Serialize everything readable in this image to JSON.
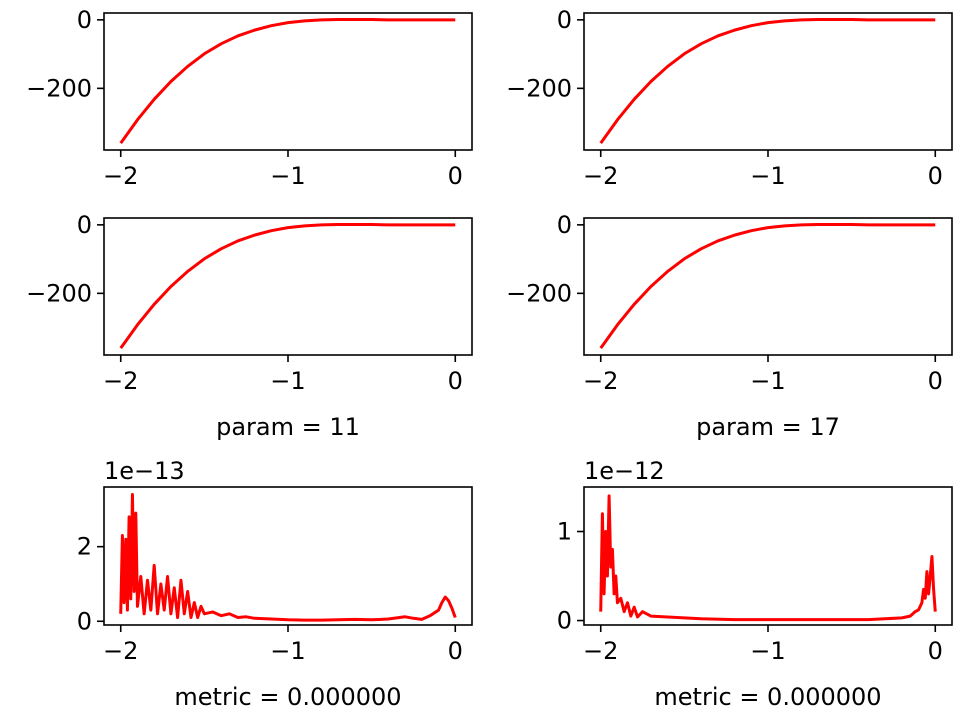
{
  "chart_data": [
    {
      "type": "line",
      "title": "",
      "xlabel": "",
      "ylabel": "",
      "xlim": [
        -2.1,
        0.1
      ],
      "ylim": [
        -380,
        20
      ],
      "x_ticks": [
        -2,
        -1,
        0
      ],
      "x_tick_labels": [
        "−2",
        "−1",
        "0"
      ],
      "y_ticks": [
        -200,
        0
      ],
      "y_tick_labels": [
        "−200",
        "0"
      ],
      "offset_text": "",
      "grid": false,
      "series": [
        {
          "color": "#ff0000",
          "x": [
            -2.0,
            -1.9,
            -1.8,
            -1.7,
            -1.6,
            -1.5,
            -1.4,
            -1.3,
            -1.2,
            -1.1,
            -1.0,
            -0.9,
            -0.8,
            -0.7,
            -0.6,
            -0.5,
            -0.4,
            -0.3,
            -0.2,
            -0.1,
            0.0
          ],
          "y": [
            -360,
            -292,
            -232,
            -180,
            -136,
            -99,
            -70,
            -47,
            -30,
            -17,
            -8,
            -3,
            0,
            1,
            1,
            1,
            0,
            0,
            0,
            0,
            0
          ]
        }
      ]
    },
    {
      "type": "line",
      "title": "",
      "xlabel": "",
      "ylabel": "",
      "xlim": [
        -2.1,
        0.1
      ],
      "ylim": [
        -380,
        20
      ],
      "x_ticks": [
        -2,
        -1,
        0
      ],
      "x_tick_labels": [
        "−2",
        "−1",
        "0"
      ],
      "y_ticks": [
        -200,
        0
      ],
      "y_tick_labels": [
        "−200",
        "0"
      ],
      "offset_text": "",
      "grid": false,
      "series": [
        {
          "color": "#ff0000",
          "x": [
            -2.0,
            -1.9,
            -1.8,
            -1.7,
            -1.6,
            -1.5,
            -1.4,
            -1.3,
            -1.2,
            -1.1,
            -1.0,
            -0.9,
            -0.8,
            -0.7,
            -0.6,
            -0.5,
            -0.4,
            -0.3,
            -0.2,
            -0.1,
            0.0
          ],
          "y": [
            -360,
            -292,
            -232,
            -180,
            -136,
            -99,
            -70,
            -47,
            -30,
            -17,
            -8,
            -3,
            0,
            1,
            1,
            1,
            0,
            0,
            0,
            0,
            0
          ]
        }
      ]
    },
    {
      "type": "line",
      "title": "",
      "xlabel": "param = 11",
      "ylabel": "",
      "xlim": [
        -2.1,
        0.1
      ],
      "ylim": [
        -380,
        20
      ],
      "x_ticks": [
        -2,
        -1,
        0
      ],
      "x_tick_labels": [
        "−2",
        "−1",
        "0"
      ],
      "y_ticks": [
        -200,
        0
      ],
      "y_tick_labels": [
        "−200",
        "0"
      ],
      "offset_text": "",
      "grid": false,
      "series": [
        {
          "color": "#ff0000",
          "x": [
            -2.0,
            -1.9,
            -1.8,
            -1.7,
            -1.6,
            -1.5,
            -1.4,
            -1.3,
            -1.2,
            -1.1,
            -1.0,
            -0.9,
            -0.8,
            -0.7,
            -0.6,
            -0.5,
            -0.4,
            -0.3,
            -0.2,
            -0.1,
            0.0
          ],
          "y": [
            -360,
            -292,
            -232,
            -180,
            -136,
            -99,
            -70,
            -47,
            -30,
            -17,
            -8,
            -3,
            0,
            1,
            1,
            1,
            0,
            0,
            0,
            0,
            0
          ]
        }
      ]
    },
    {
      "type": "line",
      "title": "",
      "xlabel": "param = 17",
      "ylabel": "",
      "xlim": [
        -2.1,
        0.1
      ],
      "ylim": [
        -380,
        20
      ],
      "x_ticks": [
        -2,
        -1,
        0
      ],
      "x_tick_labels": [
        "−2",
        "−1",
        "0"
      ],
      "y_ticks": [
        -200,
        0
      ],
      "y_tick_labels": [
        "−200",
        "0"
      ],
      "offset_text": "",
      "grid": false,
      "series": [
        {
          "color": "#ff0000",
          "x": [
            -2.0,
            -1.9,
            -1.8,
            -1.7,
            -1.6,
            -1.5,
            -1.4,
            -1.3,
            -1.2,
            -1.1,
            -1.0,
            -0.9,
            -0.8,
            -0.7,
            -0.6,
            -0.5,
            -0.4,
            -0.3,
            -0.2,
            -0.1,
            0.0
          ],
          "y": [
            -360,
            -292,
            -232,
            -180,
            -136,
            -99,
            -70,
            -47,
            -30,
            -17,
            -8,
            -3,
            0,
            1,
            1,
            1,
            0,
            0,
            0,
            0,
            0
          ]
        }
      ]
    },
    {
      "type": "line",
      "title": "",
      "xlabel": "metric = 0.000000",
      "ylabel": "",
      "xlim": [
        -2.1,
        0.1
      ],
      "ylim": [
        -0.1,
        3.6
      ],
      "x_ticks": [
        -2,
        -1,
        0
      ],
      "x_tick_labels": [
        "−2",
        "−1",
        "0"
      ],
      "y_ticks": [
        0,
        2
      ],
      "y_tick_labels": [
        "0",
        "2"
      ],
      "offset_text": "1e−13",
      "grid": false,
      "series": [
        {
          "color": "#ff0000",
          "x": [
            -2.0,
            -1.99,
            -1.98,
            -1.97,
            -1.96,
            -1.95,
            -1.94,
            -1.93,
            -1.92,
            -1.91,
            -1.9,
            -1.88,
            -1.86,
            -1.84,
            -1.82,
            -1.8,
            -1.78,
            -1.76,
            -1.74,
            -1.72,
            -1.7,
            -1.68,
            -1.66,
            -1.64,
            -1.62,
            -1.6,
            -1.58,
            -1.56,
            -1.54,
            -1.52,
            -1.5,
            -1.45,
            -1.4,
            -1.35,
            -1.3,
            -1.25,
            -1.2,
            -1.1,
            -1.0,
            -0.9,
            -0.8,
            -0.7,
            -0.6,
            -0.5,
            -0.4,
            -0.35,
            -0.3,
            -0.25,
            -0.2,
            -0.15,
            -0.1,
            -0.08,
            -0.06,
            -0.04,
            -0.02,
            0.0
          ],
          "y": [
            0.2,
            2.3,
            0.5,
            2.2,
            0.3,
            2.8,
            0.6,
            3.4,
            0.8,
            2.9,
            0.4,
            1.2,
            0.2,
            1.1,
            0.3,
            1.5,
            0.2,
            1.0,
            0.3,
            1.2,
            0.2,
            0.9,
            0.1,
            1.1,
            0.2,
            0.8,
            0.1,
            0.5,
            0.1,
            0.4,
            0.2,
            0.25,
            0.15,
            0.2,
            0.1,
            0.12,
            0.08,
            0.06,
            0.04,
            0.03,
            0.03,
            0.04,
            0.05,
            0.04,
            0.06,
            0.09,
            0.12,
            0.08,
            0.05,
            0.15,
            0.3,
            0.5,
            0.65,
            0.55,
            0.35,
            0.1
          ]
        }
      ]
    },
    {
      "type": "line",
      "title": "",
      "xlabel": "metric = 0.000000",
      "ylabel": "",
      "xlim": [
        -2.1,
        0.1
      ],
      "ylim": [
        -0.05,
        1.5
      ],
      "x_ticks": [
        -2,
        -1,
        0
      ],
      "x_tick_labels": [
        "−2",
        "−1",
        "0"
      ],
      "y_ticks": [
        0,
        1
      ],
      "y_tick_labels": [
        "0",
        "1"
      ],
      "offset_text": "1e−12",
      "grid": false,
      "series": [
        {
          "color": "#ff0000",
          "x": [
            -2.0,
            -1.99,
            -1.98,
            -1.97,
            -1.96,
            -1.95,
            -1.94,
            -1.93,
            -1.92,
            -1.91,
            -1.9,
            -1.88,
            -1.86,
            -1.84,
            -1.82,
            -1.8,
            -1.78,
            -1.75,
            -1.7,
            -1.6,
            -1.5,
            -1.4,
            -1.2,
            -1.0,
            -0.8,
            -0.6,
            -0.4,
            -0.3,
            -0.2,
            -0.15,
            -0.12,
            -0.1,
            -0.08,
            -0.07,
            -0.06,
            -0.05,
            -0.04,
            -0.03,
            -0.02,
            -0.01,
            0.0
          ],
          "y": [
            0.1,
            1.2,
            0.3,
            1.0,
            0.5,
            1.4,
            0.6,
            0.8,
            0.3,
            0.5,
            0.2,
            0.25,
            0.1,
            0.2,
            0.05,
            0.15,
            0.04,
            0.1,
            0.05,
            0.04,
            0.03,
            0.02,
            0.01,
            0.01,
            0.01,
            0.01,
            0.01,
            0.02,
            0.03,
            0.05,
            0.1,
            0.12,
            0.2,
            0.35,
            0.25,
            0.55,
            0.3,
            0.5,
            0.72,
            0.35,
            0.1
          ]
        }
      ]
    }
  ]
}
